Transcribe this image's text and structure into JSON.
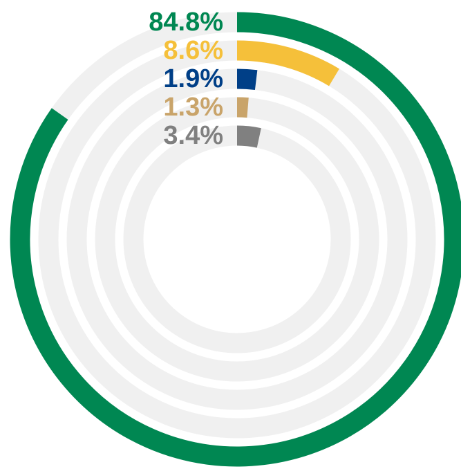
{
  "chart_data": {
    "type": "radial_bar",
    "values": [
      84.8,
      8.6,
      1.9,
      1.3,
      3.4
    ],
    "value_labels": [
      "84.8%",
      "8.6%",
      "1.9%",
      "1.3%",
      "3.4%"
    ],
    "colors": [
      "#008752",
      "#f5c03a",
      "#003f87",
      "#c9a46a",
      "#808080"
    ],
    "ylim": [
      0,
      100
    ]
  }
}
